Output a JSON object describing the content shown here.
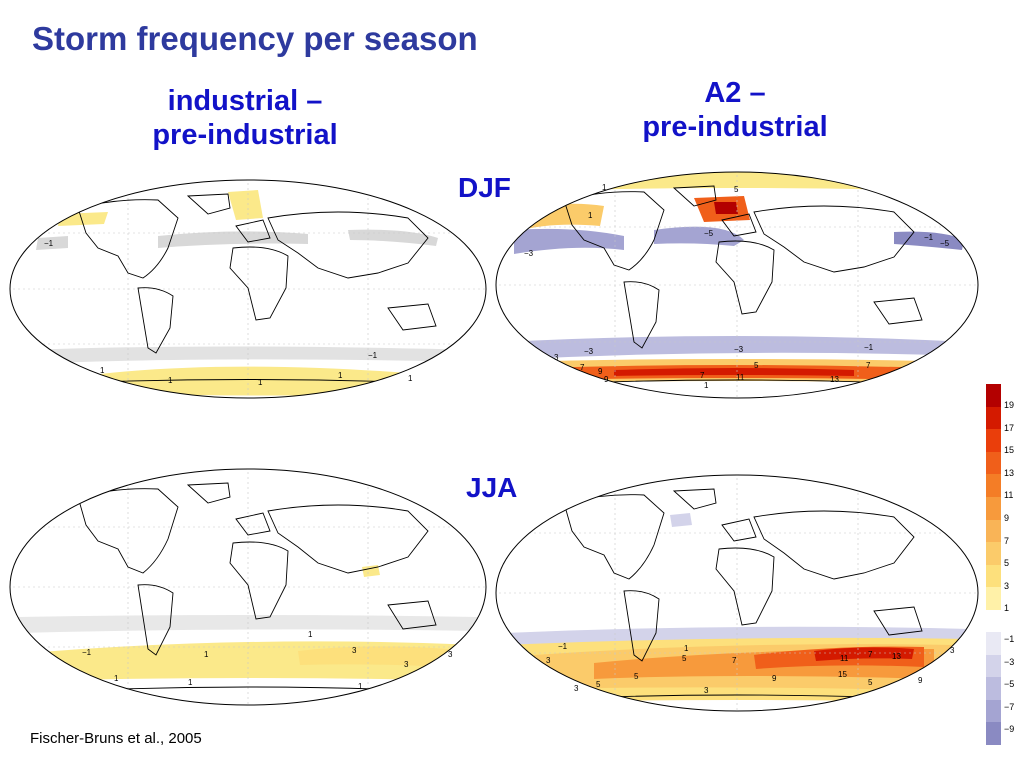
{
  "title": "Storm frequency per season",
  "columns": {
    "left": {
      "line1": "industrial  –",
      "line2": "pre-industrial"
    },
    "right": {
      "line1": "A2  –",
      "line2": "pre-industrial"
    }
  },
  "rows": {
    "top": "DJF",
    "bottom": "JJA"
  },
  "citation": "Fischer-Bruns et al., 2005",
  "colors": {
    "title": "#2e3a9e",
    "labels": "#1212c8",
    "land_outline": "#000000",
    "positive_low": "#fbe98a",
    "positive_high": "#b30000",
    "negative": "#8f8fc4"
  },
  "colorbar": {
    "positive": [
      {
        "label": "19",
        "color": "#b30000"
      },
      {
        "label": "17",
        "color": "#d41a00"
      },
      {
        "label": "15",
        "color": "#ea3e0b"
      },
      {
        "label": "13",
        "color": "#f05f1a"
      },
      {
        "label": "11",
        "color": "#f47d26"
      },
      {
        "label": "9",
        "color": "#f79a3c"
      },
      {
        "label": "7",
        "color": "#f9b457"
      },
      {
        "label": "5",
        "color": "#fbcb6a"
      },
      {
        "label": "3",
        "color": "#fde07c"
      },
      {
        "label": "1",
        "color": "#fff1a8"
      }
    ],
    "negative": [
      {
        "label": "−1",
        "color": "#e9e9f4"
      },
      {
        "label": "−3",
        "color": "#d3d3ea"
      },
      {
        "label": "−5",
        "color": "#bcbcdf"
      },
      {
        "label": "−7",
        "color": "#a4a4d2"
      },
      {
        "label": "−9",
        "color": "#8a8ac2"
      }
    ]
  },
  "maps": [
    {
      "id": "industrial-djf",
      "contour_labels": [
        "1",
        "−1",
        "1",
        "1",
        "1",
        "1",
        "−1"
      ]
    },
    {
      "id": "a2-djf",
      "contour_labels": [
        "1",
        "5",
        "1",
        "−3",
        "−5",
        "−1",
        "−5",
        "−3",
        "−3",
        "−1",
        "7",
        "9",
        "11",
        "13",
        "5",
        "7",
        "9",
        "3",
        "7",
        "1"
      ]
    },
    {
      "id": "industrial-jja",
      "contour_labels": [
        "1",
        "−1",
        "1",
        "3",
        "1",
        "3",
        "1",
        "3",
        "1"
      ]
    },
    {
      "id": "a2-jja",
      "contour_labels": [
        "1",
        "−1",
        "3",
        "5",
        "7",
        "9",
        "11",
        "13",
        "15",
        "7",
        "5",
        "3",
        "5",
        "3",
        "5",
        "9",
        "3"
      ]
    }
  ]
}
